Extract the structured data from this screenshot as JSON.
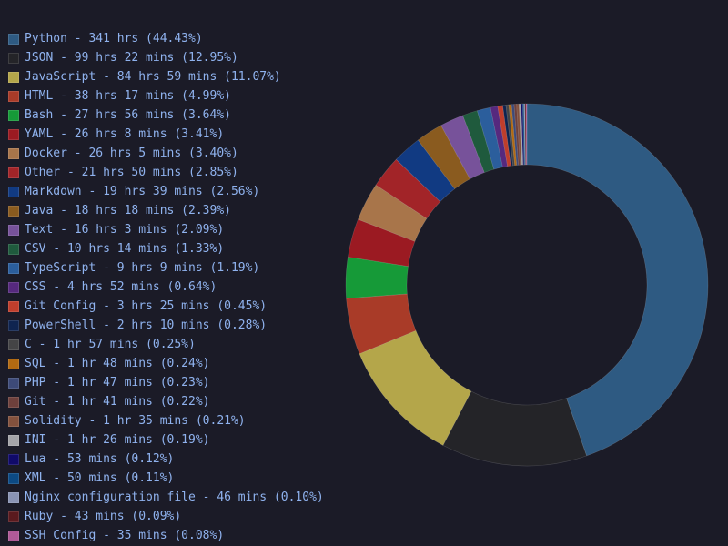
{
  "chart_data": {
    "type": "pie",
    "donut": true,
    "legend_position": "left",
    "slices": [
      {
        "label": "Python - 341 hrs (44.43%)",
        "value": 44.43,
        "color": "#2e5a82"
      },
      {
        "label": "JSON - 99 hrs 22 mins (12.95%)",
        "value": 12.95,
        "color": "#242428"
      },
      {
        "label": "JavaScript - 84 hrs 59 mins (11.07%)",
        "value": 11.07,
        "color": "#b4a64a"
      },
      {
        "label": "HTML - 38 hrs 17 mins (4.99%)",
        "value": 4.99,
        "color": "#a93b28"
      },
      {
        "label": "Bash - 27 hrs 56 mins (3.64%)",
        "value": 3.64,
        "color": "#169a38"
      },
      {
        "label": "YAML - 26 hrs 8 mins (3.41%)",
        "value": 3.41,
        "color": "#9b1a22"
      },
      {
        "label": "Docker - 26 hrs 5 mins (3.40%)",
        "value": 3.4,
        "color": "#a8754a"
      },
      {
        "label": "Other - 21 hrs 50 mins (2.85%)",
        "value": 2.85,
        "color": "#a22428"
      },
      {
        "label": "Markdown - 19 hrs 39 mins (2.56%)",
        "value": 2.56,
        "color": "#113a82"
      },
      {
        "label": "Java - 18 hrs 18 mins (2.39%)",
        "value": 2.39,
        "color": "#8a5b1f"
      },
      {
        "label": "Text - 16 hrs 3 mins (2.09%)",
        "value": 2.09,
        "color": "#77529a"
      },
      {
        "label": "CSV - 10 hrs 14 mins (1.33%)",
        "value": 1.33,
        "color": "#1f5a3d"
      },
      {
        "label": "TypeScript - 9 hrs 9 mins (1.19%)",
        "value": 1.19,
        "color": "#2b5e9c"
      },
      {
        "label": "CSS - 4 hrs 52 mins (0.64%)",
        "value": 0.64,
        "color": "#56297e"
      },
      {
        "label": "Git Config - 3 hrs 25 mins (0.45%)",
        "value": 0.45,
        "color": "#c03e2c"
      },
      {
        "label": "PowerShell - 2 hrs 10 mins (0.28%)",
        "value": 0.28,
        "color": "#0f2450"
      },
      {
        "label": "C - 1 hr 57 mins (0.25%)",
        "value": 0.25,
        "color": "#444446"
      },
      {
        "label": "SQL - 1 hr 48 mins (0.24%)",
        "value": 0.24,
        "color": "#b26a12"
      },
      {
        "label": "PHP - 1 hr 47 mins (0.23%)",
        "value": 0.23,
        "color": "#3d4a78"
      },
      {
        "label": "Git - 1 hr 41 mins (0.22%)",
        "value": 0.22,
        "color": "#6e403c"
      },
      {
        "label": "Solidity - 1 hr 35 mins (0.21%)",
        "value": 0.21,
        "color": "#83513d"
      },
      {
        "label": "INI - 1 hr 26 mins (0.19%)",
        "value": 0.19,
        "color": "#a4a4a8"
      },
      {
        "label": "Lua - 53 mins (0.12%)",
        "value": 0.12,
        "color": "#100a6a"
      },
      {
        "label": "XML - 50 mins (0.11%)",
        "value": 0.11,
        "color": "#0c4a84"
      },
      {
        "label": "Nginx configuration file - 46 mins (0.10%)",
        "value": 0.1,
        "color": "#8a94b4"
      },
      {
        "label": "Ruby - 43 mins (0.09%)",
        "value": 0.09,
        "color": "#5a1a1e"
      },
      {
        "label": "SSH Config - 35 mins (0.08%)",
        "value": 0.08,
        "color": "#b05a98"
      }
    ]
  }
}
